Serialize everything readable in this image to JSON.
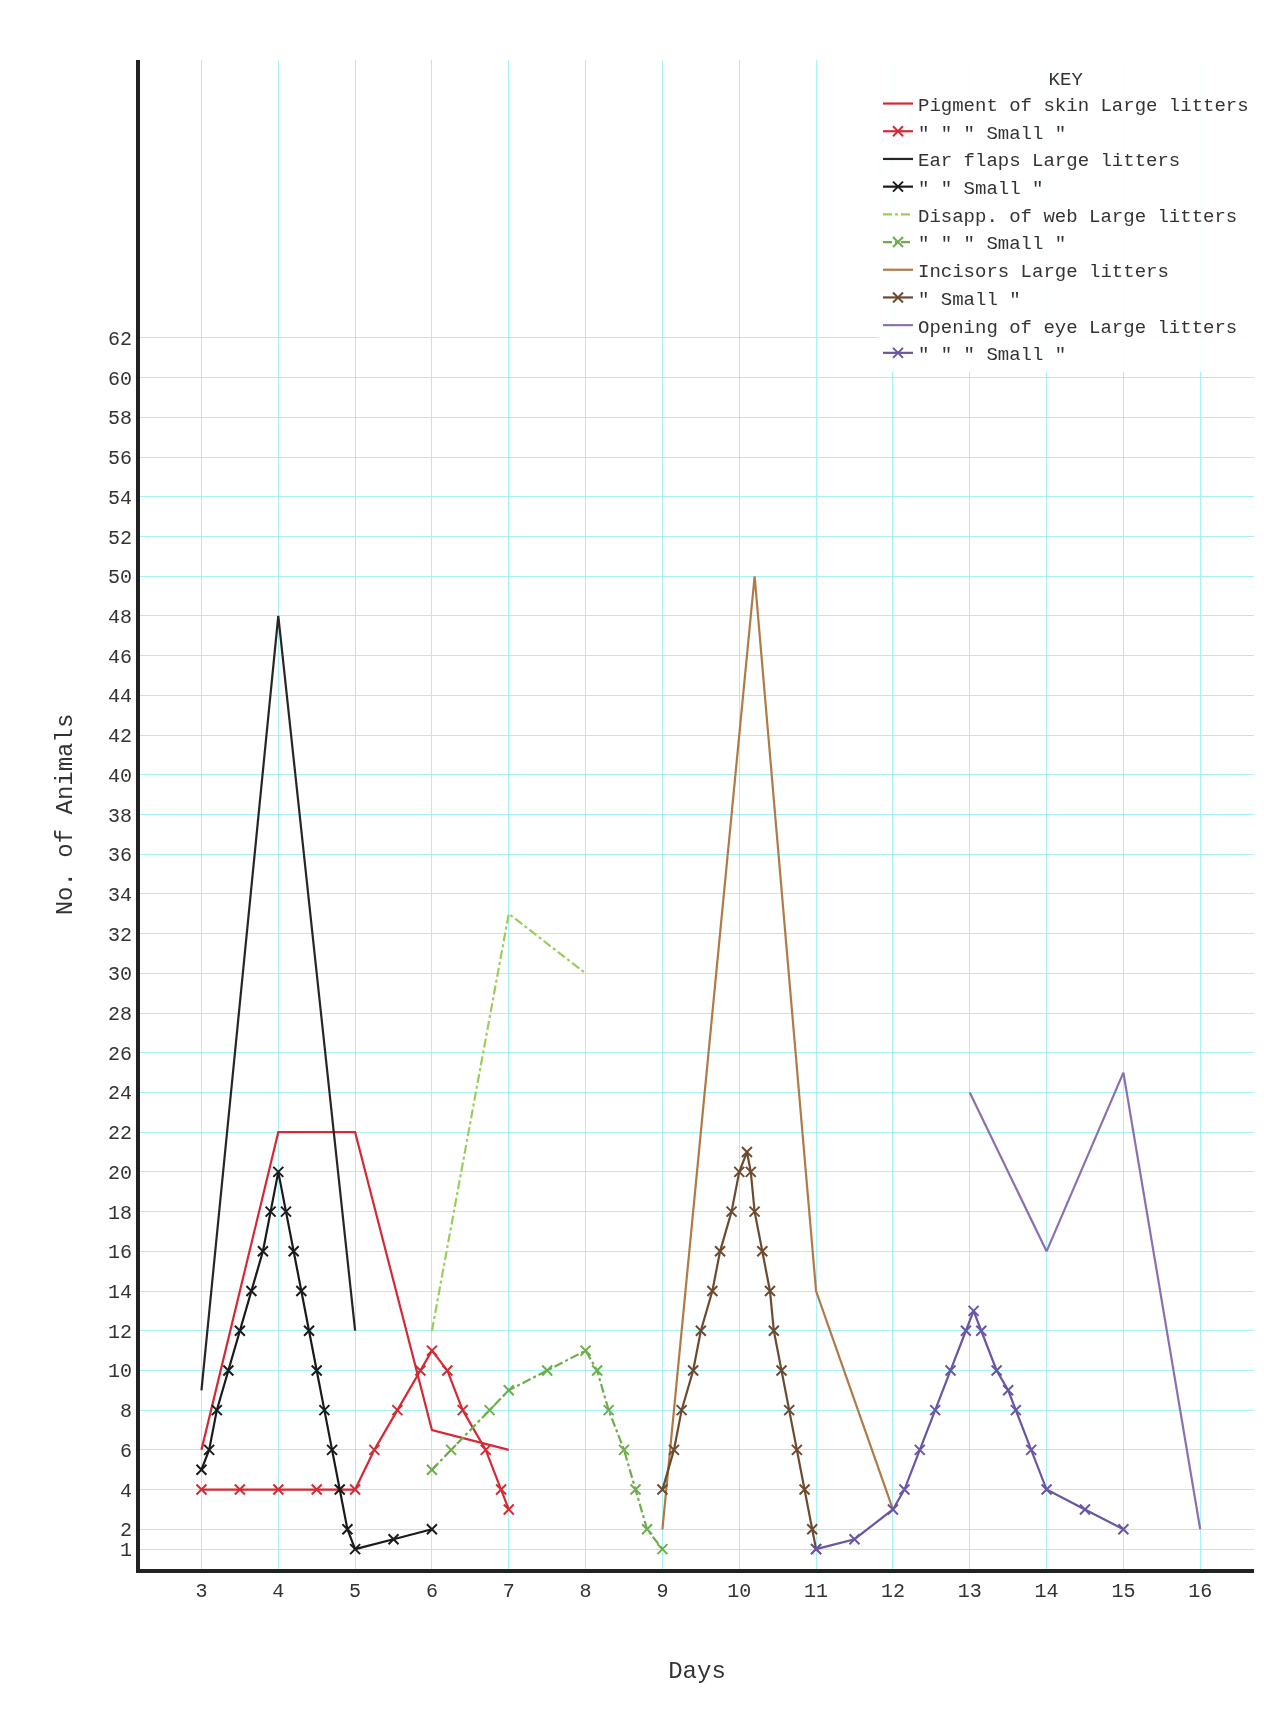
{
  "chart_data": {
    "type": "line",
    "xlabel": "Days",
    "ylabel": "No. of Animals",
    "legend_title": "KEY",
    "legend": "top right",
    "grid": true,
    "xlim": [
      2.2,
      16.7
    ],
    "xticks": [
      3,
      4,
      5,
      6,
      7,
      8,
      9,
      10,
      11,
      12,
      13,
      14,
      15,
      16
    ],
    "ylim": [
      0,
      76
    ],
    "yticks": [
      1,
      2,
      4,
      6,
      8,
      10,
      12,
      14,
      16,
      18,
      20,
      22,
      24,
      26,
      28,
      30,
      32,
      34,
      36,
      38,
      40,
      42,
      44,
      46,
      48,
      50,
      52,
      54,
      56,
      58,
      60,
      62
    ],
    "series": [
      {
        "name": "Pigment of skin Large litters",
        "color": "#d42a35",
        "marker": "none",
        "line_style": "solid",
        "x": [
          3,
          4,
          5,
          6,
          7
        ],
        "values": [
          6,
          22,
          22,
          7,
          6
        ]
      },
      {
        "name": "\" \" \" Small \"",
        "color": "#d42a35",
        "marker": "cross",
        "line_style": "solid",
        "x": [
          3,
          3.5,
          4,
          4.5,
          5,
          5.25,
          5.55,
          5.85,
          6,
          6.2,
          6.4,
          6.7,
          6.9,
          7
        ],
        "values": [
          4,
          4,
          4,
          4,
          4,
          6,
          8,
          10,
          11,
          10,
          8,
          6,
          4,
          3
        ]
      },
      {
        "name": "Ear flaps Large litters",
        "color": "#2a2424",
        "marker": "none",
        "line_style": "solid",
        "x": [
          3,
          4,
          5
        ],
        "values": [
          9,
          48,
          12
        ]
      },
      {
        "name": "\" \" Small \"",
        "color": "#1a1a1a",
        "marker": "cross",
        "line_style": "solid",
        "x": [
          3,
          3.1,
          3.2,
          3.35,
          3.5,
          3.65,
          3.8,
          3.9,
          4,
          4.1,
          4.2,
          4.3,
          4.4,
          4.5,
          4.6,
          4.7,
          4.8,
          4.9,
          5,
          5.5,
          6
        ],
        "values": [
          5,
          6,
          8,
          10,
          12,
          14,
          16,
          18,
          20,
          18,
          16,
          14,
          12,
          10,
          8,
          6,
          4,
          2,
          1,
          1.5,
          2
        ]
      },
      {
        "name": "Disapp. of web Large litters",
        "color": "#9acd5a",
        "marker": "none",
        "line_style": "dashed",
        "x": [
          6,
          7,
          8
        ],
        "values": [
          12,
          33,
          30
        ]
      },
      {
        "name": "\" \" \" Small \"",
        "color": "#6cae4c",
        "marker": "cross",
        "line_style": "dashed",
        "x": [
          6,
          6.25,
          6.75,
          7,
          7.5,
          8,
          8.15,
          8.3,
          8.5,
          8.65,
          8.8,
          9
        ],
        "values": [
          5,
          6,
          8,
          9,
          10,
          11,
          10,
          8,
          6,
          4,
          2,
          1
        ]
      },
      {
        "name": "Incisors Large litters",
        "color": "#b07a48",
        "marker": "none",
        "line_style": "solid",
        "x": [
          9,
          10.2,
          11,
          12
        ],
        "values": [
          2,
          50,
          14,
          3
        ]
      },
      {
        "name": "\" Small \"",
        "color": "#6b4a30",
        "marker": "cross",
        "line_style": "solid",
        "x": [
          9,
          9.15,
          9.25,
          9.4,
          9.5,
          9.65,
          9.75,
          9.9,
          10,
          10.1,
          10.15,
          10.2,
          10.3,
          10.4,
          10.45,
          10.55,
          10.65,
          10.75,
          10.85,
          10.95,
          11
        ],
        "values": [
          4,
          6,
          8,
          10,
          12,
          14,
          16,
          18,
          20,
          21,
          20,
          18,
          16,
          14,
          12,
          10,
          8,
          6,
          4,
          2,
          1
        ]
      },
      {
        "name": "Opening of eye Large litters",
        "color": "#8a70b0",
        "marker": "none",
        "line_style": "solid",
        "x": [
          13,
          14,
          15,
          16
        ],
        "values": [
          24,
          16,
          25,
          2
        ]
      },
      {
        "name": "\" \" \" Small \"",
        "color": "#6a55a5",
        "marker": "cross",
        "line_style": "solid",
        "x": [
          11,
          11.5,
          12,
          12.15,
          12.35,
          12.55,
          12.75,
          12.95,
          13.05,
          13.15,
          13.35,
          13.5,
          13.6,
          13.8,
          14,
          14.5,
          15
        ],
        "values": [
          1,
          1.5,
          3,
          4,
          6,
          8,
          10,
          12,
          13,
          12,
          10,
          9,
          8,
          6,
          4,
          3,
          2
        ]
      }
    ]
  }
}
